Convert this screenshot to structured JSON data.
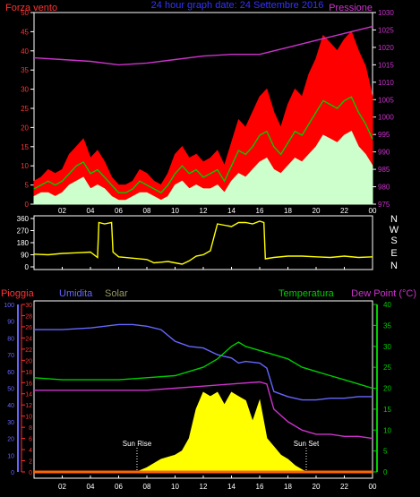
{
  "header": {
    "left_label": "Forza vento",
    "center_title": "24 hour graph date: 24 Settembre 2016",
    "right_label": "Pressione"
  },
  "footer": {
    "labels": {
      "pioggia": "Pioggia",
      "umidita": "Umidita",
      "solar": "Solar",
      "temperatura": "Temperatura",
      "dew_point": "Dew Point (°C)"
    }
  },
  "colors": {
    "background": "#000000",
    "axis_frame": "#ffffff",
    "wind_gust": "#ff0000",
    "wind_avg": "#00cc00",
    "wind_min": "#ccffcc",
    "pressure": "#cc33cc",
    "direction": "#ffff00",
    "humidity": "#6666ff",
    "temperature": "#00cc00",
    "dew_point": "#cc33cc",
    "solar": "#ffff00",
    "rain": "#ff6600",
    "left_axis_red": "#ff3333",
    "left_axis_blue": "#6666ff",
    "right_axis_green": "#00cc00",
    "right_axis_pressure": "#cc33cc"
  },
  "chart_data": [
    {
      "type": "area",
      "x_hours_ticks": [
        "02",
        "04",
        "06",
        "08",
        "10",
        "12",
        "14",
        "16",
        "18",
        "20",
        "22",
        "00"
      ],
      "y_left": {
        "label": "Forza vento",
        "range": [
          0,
          50
        ],
        "ticks": [
          0,
          5,
          10,
          15,
          20,
          25,
          30,
          35,
          40,
          45,
          50
        ]
      },
      "y_right": {
        "label": "Pressione",
        "range": [
          975,
          1030
        ],
        "ticks": [
          975,
          980,
          985,
          990,
          995,
          1000,
          1005,
          1010,
          1015,
          1020,
          1025,
          1030
        ]
      },
      "x_range_hours": [
        0,
        24
      ],
      "series": [
        {
          "key": "gust",
          "x": [
            0,
            0.5,
            1,
            1.5,
            2,
            2.5,
            3,
            3.5,
            4,
            4.5,
            5,
            5.5,
            6,
            6.5,
            7,
            7.5,
            8,
            8.5,
            9,
            9.5,
            10,
            10.5,
            11,
            11.5,
            12,
            12.5,
            13,
            13.5,
            14,
            14.5,
            15,
            15.5,
            16,
            16.5,
            17,
            17.5,
            18,
            18.5,
            19,
            19.5,
            20,
            20.5,
            21,
            21.5,
            22,
            22.5,
            23,
            23.5,
            24
          ],
          "values": [
            6,
            7,
            9,
            8,
            9,
            13,
            15,
            17,
            12,
            14,
            11,
            7,
            5,
            5,
            6,
            9,
            8,
            6,
            5,
            8,
            13,
            15,
            12,
            13,
            11,
            12,
            14,
            10,
            16,
            22,
            20,
            24,
            28,
            30,
            24,
            20,
            26,
            30,
            28,
            34,
            38,
            44,
            42,
            40,
            43,
            45,
            40,
            36,
            28
          ]
        },
        {
          "key": "avg",
          "x": [
            0,
            0.5,
            1,
            1.5,
            2,
            2.5,
            3,
            3.5,
            4,
            4.5,
            5,
            5.5,
            6,
            6.5,
            7,
            7.5,
            8,
            8.5,
            9,
            9.5,
            10,
            10.5,
            11,
            11.5,
            12,
            12.5,
            13,
            13.5,
            14,
            14.5,
            15,
            15.5,
            16,
            16.5,
            17,
            17.5,
            18,
            18.5,
            19,
            19.5,
            20,
            20.5,
            21,
            21.5,
            22,
            22.5,
            23,
            23.5,
            24
          ],
          "values": [
            4,
            5,
            6,
            5,
            6,
            8,
            10,
            11,
            8,
            9,
            7,
            5,
            3,
            3,
            4,
            6,
            5,
            4,
            3,
            5,
            8,
            10,
            8,
            9,
            7,
            8,
            9,
            6,
            10,
            14,
            13,
            15,
            18,
            19,
            15,
            13,
            16,
            19,
            18,
            21,
            24,
            27,
            26,
            25,
            27,
            28,
            24,
            21,
            17
          ]
        },
        {
          "key": "min",
          "x": [
            0,
            0.5,
            1,
            1.5,
            2,
            2.5,
            3,
            3.5,
            4,
            4.5,
            5,
            5.5,
            6,
            6.5,
            7,
            7.5,
            8,
            8.5,
            9,
            9.5,
            10,
            10.5,
            11,
            11.5,
            12,
            12.5,
            13,
            13.5,
            14,
            14.5,
            15,
            15.5,
            16,
            16.5,
            17,
            17.5,
            18,
            18.5,
            19,
            19.5,
            20,
            20.5,
            21,
            21.5,
            22,
            22.5,
            23,
            23.5,
            24
          ],
          "values": [
            2,
            3,
            3,
            2,
            3,
            5,
            6,
            7,
            4,
            5,
            4,
            2,
            1,
            1,
            2,
            3,
            3,
            2,
            1,
            2,
            5,
            6,
            4,
            5,
            4,
            4,
            5,
            3,
            6,
            8,
            7,
            9,
            11,
            12,
            9,
            8,
            10,
            12,
            11,
            13,
            15,
            18,
            17,
            16,
            18,
            19,
            15,
            13,
            10
          ]
        },
        {
          "key": "pressure",
          "axis": "right",
          "x": [
            0,
            2,
            4,
            6,
            8,
            10,
            12,
            14,
            16,
            18,
            20,
            22,
            24
          ],
          "values": [
            1017,
            1016.5,
            1016,
            1015,
            1015.5,
            1016.5,
            1017.5,
            1018,
            1018,
            1020,
            1022,
            1024,
            1026
          ]
        }
      ]
    },
    {
      "type": "line",
      "y_left_ticks": [
        0,
        90,
        180,
        270,
        360
      ],
      "y_right_letters": [
        "N",
        "W",
        "S",
        "E",
        "N"
      ],
      "y_range": [
        0,
        360
      ],
      "x_range_hours": [
        0,
        24
      ],
      "series": [
        {
          "key": "direction",
          "x": [
            0,
            1,
            2,
            3,
            4,
            4.5,
            4.6,
            5,
            5.5,
            5.6,
            6,
            7,
            8,
            8.5,
            9,
            9.5,
            10,
            10.5,
            11,
            11.5,
            12,
            12.5,
            13,
            13.5,
            14,
            14.5,
            15,
            15.5,
            16,
            16.3,
            16.4,
            17,
            18,
            19,
            20,
            21,
            22,
            23,
            24
          ],
          "values": [
            95,
            90,
            100,
            105,
            110,
            70,
            330,
            320,
            330,
            110,
            75,
            65,
            55,
            30,
            35,
            40,
            30,
            20,
            45,
            80,
            90,
            120,
            320,
            310,
            300,
            330,
            330,
            320,
            340,
            330,
            60,
            70,
            80,
            80,
            75,
            70,
            80,
            70,
            75
          ]
        }
      ]
    },
    {
      "type": "line",
      "x_hours_ticks": [
        "02",
        "04",
        "06",
        "08",
        "10",
        "12",
        "14",
        "16",
        "18",
        "20",
        "22",
        "00"
      ],
      "x_range_hours": [
        0,
        24
      ],
      "y_left_rain": {
        "range": [
          0,
          30
        ],
        "ticks": [
          0,
          2,
          4,
          6,
          8,
          10,
          12,
          14,
          16,
          18,
          20,
          22,
          24,
          26,
          28,
          30
        ]
      },
      "y_left_humidity": {
        "range": [
          0,
          100
        ],
        "ticks": [
          0,
          10,
          20,
          30,
          40,
          50,
          60,
          70,
          80,
          90,
          100
        ]
      },
      "y_right": {
        "range": [
          0,
          40
        ],
        "ticks": [
          0,
          5,
          10,
          15,
          20,
          25,
          30,
          35,
          40
        ]
      },
      "annotations": [
        {
          "text": "Sun Rise",
          "x_hours": 7.3
        },
        {
          "text": "Sun Set",
          "x_hours": 19.3
        }
      ],
      "series": [
        {
          "key": "humidity",
          "axis": "humidity",
          "x": [
            0,
            2,
            4,
            5,
            6,
            7,
            8,
            9,
            10,
            11,
            12,
            13,
            14,
            14.5,
            15,
            16,
            16.5,
            17,
            18,
            19,
            20,
            21,
            22,
            23,
            24
          ],
          "values": [
            85,
            85,
            86,
            87,
            88,
            88,
            87,
            85,
            78,
            75,
            74,
            70,
            68,
            65,
            66,
            65,
            62,
            48,
            45,
            43,
            43,
            44,
            44,
            45,
            45
          ]
        },
        {
          "key": "temperature",
          "axis": "right",
          "x": [
            0,
            2,
            4,
            6,
            8,
            10,
            11,
            12,
            13,
            14,
            14.5,
            15,
            16,
            17,
            18,
            19,
            20,
            21,
            22,
            23,
            24
          ],
          "values": [
            22.5,
            22,
            22,
            22,
            22.5,
            23,
            24,
            25,
            27,
            30,
            31,
            30,
            29,
            28,
            27,
            25,
            24,
            23,
            22,
            21,
            20
          ]
        },
        {
          "key": "dew_point",
          "axis": "right",
          "x": [
            0,
            2,
            4,
            6,
            8,
            10,
            12,
            14,
            16,
            16.5,
            17,
            18,
            19,
            20,
            21,
            22,
            23,
            24
          ],
          "values": [
            19.5,
            19.5,
            19.5,
            19.5,
            19.5,
            20,
            20.5,
            21,
            21.5,
            21,
            15,
            12,
            10,
            9,
            9,
            8.5,
            8.5,
            8
          ]
        },
        {
          "key": "solar",
          "axis": "right",
          "x": [
            7.3,
            8,
            9,
            10,
            10.5,
            11,
            11.5,
            12,
            12.5,
            13,
            13.5,
            14,
            14.5,
            15,
            15.5,
            16,
            16.5,
            17,
            17.5,
            18,
            18.5,
            19,
            19.3
          ],
          "values": [
            0,
            1,
            3,
            4,
            5,
            8,
            15,
            19,
            18,
            19,
            16,
            19,
            18,
            17,
            12,
            17,
            8,
            6,
            4,
            3,
            1.5,
            0.5,
            0
          ]
        },
        {
          "key": "rain",
          "axis": "rain",
          "x": [
            0,
            24
          ],
          "values": [
            0,
            0
          ]
        }
      ]
    }
  ]
}
